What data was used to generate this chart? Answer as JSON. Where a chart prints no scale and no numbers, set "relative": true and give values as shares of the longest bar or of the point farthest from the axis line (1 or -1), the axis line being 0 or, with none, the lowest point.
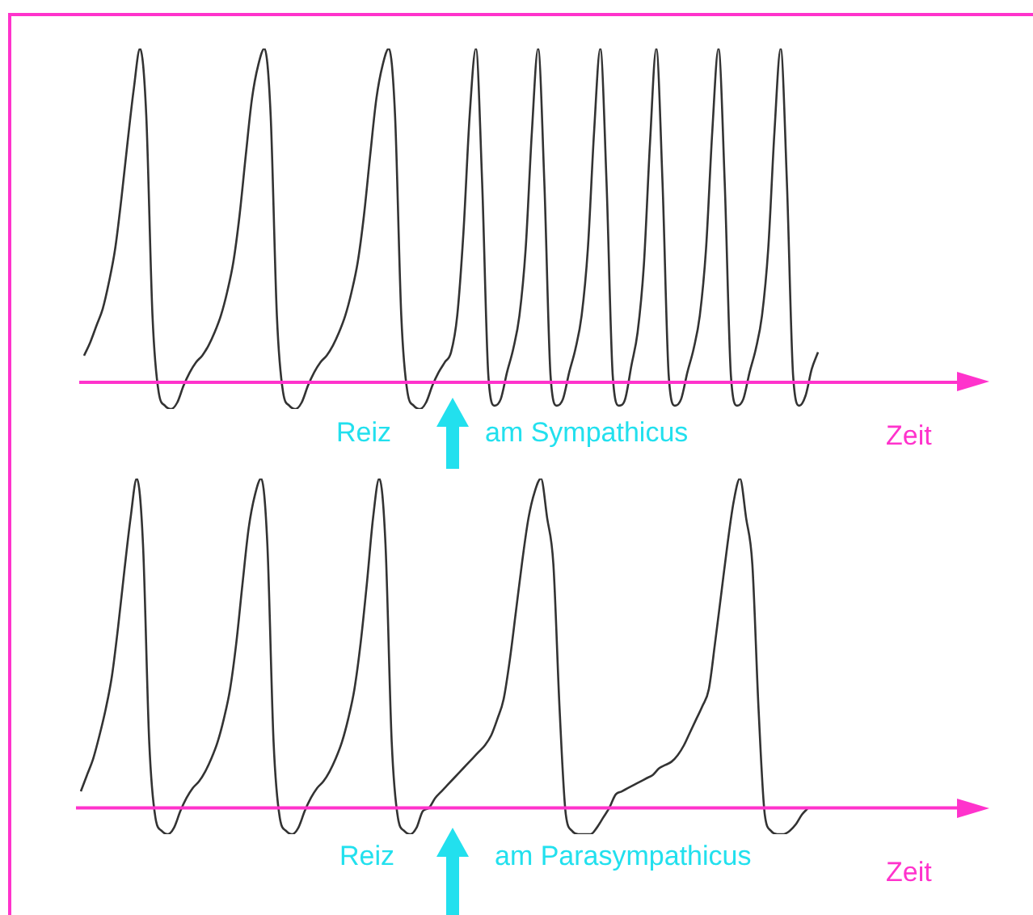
{
  "chart_data": [
    {
      "type": "line",
      "relative": true,
      "tick_labels": false,
      "legend": false,
      "marker": "none",
      "line_style": "solid",
      "xlabel": "Zeit",
      "annotations": [
        "Reiz",
        "am Sympathicus"
      ],
      "ref_lines": [
        {
          "axis": "y",
          "value": 0,
          "color": "#ff33cc"
        }
      ],
      "categories": [
        null,
        null,
        null,
        null,
        null,
        null,
        null,
        null,
        null,
        null,
        null,
        null,
        null,
        null,
        null,
        null,
        null,
        null,
        null,
        null,
        null,
        null,
        null,
        null,
        null,
        null,
        null,
        null,
        null,
        null,
        null,
        null,
        null,
        null,
        null,
        null,
        null,
        null,
        null,
        null,
        null,
        null,
        null,
        null,
        null,
        null,
        null,
        null,
        null,
        null,
        null,
        null,
        null,
        null,
        null,
        null,
        null,
        null,
        null,
        null,
        null,
        null,
        null,
        null,
        null,
        null,
        null,
        null,
        null,
        null,
        null,
        null,
        null,
        null,
        null,
        null,
        null,
        null,
        null,
        null,
        null,
        null,
        null,
        null,
        null,
        null,
        null,
        null,
        null,
        null,
        null,
        null,
        null,
        null,
        null,
        null,
        null,
        null,
        null,
        null,
        null,
        null,
        null,
        null,
        null,
        null,
        null,
        null,
        null,
        null,
        null,
        null,
        null,
        null,
        null,
        null,
        null,
        null,
        null
      ],
      "series": [
        {
          "color": "#333333",
          "values": [
            0.08,
            0.12,
            0.17,
            0.22,
            0.3,
            0.4,
            0.55,
            0.72,
            0.88,
            1,
            0.8,
            0.2,
            -0.03,
            -0.07,
            -0.08,
            -0.06,
            -0.01,
            0.03,
            0.06,
            0.08,
            0.11,
            0.15,
            0.2,
            0.27,
            0.36,
            0.5,
            0.68,
            0.85,
            0.95,
            1,
            0.8,
            0.2,
            -0.03,
            -0.07,
            -0.08,
            -0.06,
            -0.01,
            0.03,
            0.06,
            0.08,
            0.11,
            0.15,
            0.2,
            0.27,
            0.36,
            0.5,
            0.68,
            0.85,
            0.95,
            1,
            0.8,
            0.2,
            -0.03,
            -0.07,
            -0.08,
            -0.06,
            -0.01,
            0.03,
            0.06,
            0.09,
            0.2,
            0.45,
            0.8,
            1,
            0.6,
            0.02,
            -0.07,
            -0.05,
            0.03,
            0.1,
            0.2,
            0.4,
            0.75,
            1,
            0.6,
            0.02,
            -0.07,
            -0.05,
            0.03,
            0.1,
            0.2,
            0.4,
            0.75,
            1,
            0.6,
            0.02,
            -0.07,
            -0.05,
            0.05,
            0.15,
            0.35,
            0.72,
            1,
            0.6,
            0.02,
            -0.07,
            -0.05,
            0.03,
            0.1,
            0.2,
            0.4,
            0.75,
            1,
            0.6,
            0.02,
            -0.07,
            -0.05,
            0.03,
            0.1,
            0.2,
            0.4,
            0.75,
            1,
            0.6,
            0.02,
            -0.07,
            -0.04,
            0.04,
            0.09
          ]
        }
      ]
    },
    {
      "type": "line",
      "relative": true,
      "tick_labels": false,
      "legend": false,
      "marker": "none",
      "line_style": "solid",
      "xlabel": "Zeit",
      "annotations": [
        "Reiz",
        "am Parasympathicus"
      ],
      "ref_lines": [
        {
          "axis": "y",
          "value": 0,
          "color": "#ff33cc"
        }
      ],
      "categories": [
        null,
        null,
        null,
        null,
        null,
        null,
        null,
        null,
        null,
        null,
        null,
        null,
        null,
        null,
        null,
        null,
        null,
        null,
        null,
        null,
        null,
        null,
        null,
        null,
        null,
        null,
        null,
        null,
        null,
        null,
        null,
        null,
        null,
        null,
        null,
        null,
        null,
        null,
        null,
        null,
        null,
        null,
        null,
        null,
        null,
        null,
        null,
        null,
        null,
        null,
        null,
        null,
        null,
        null,
        null,
        null,
        null,
        null,
        null,
        null,
        null,
        null,
        null,
        null,
        null,
        null,
        null,
        null,
        null,
        null,
        null,
        null,
        null,
        null,
        null,
        null,
        null,
        null,
        null,
        null,
        null,
        null,
        null,
        null,
        null,
        null,
        null,
        null,
        null,
        null,
        null,
        null,
        null,
        null,
        null,
        null,
        null,
        null,
        null,
        null,
        null,
        null,
        null,
        null,
        null,
        null,
        null,
        null,
        null,
        null,
        null,
        null,
        null,
        null,
        null,
        null,
        null,
        null
      ],
      "series": [
        {
          "color": "#333333",
          "values": [
            0.05,
            0.1,
            0.15,
            0.22,
            0.3,
            0.4,
            0.55,
            0.72,
            0.88,
            1,
            0.8,
            0.2,
            -0.03,
            -0.07,
            -0.08,
            -0.06,
            -0.01,
            0.03,
            0.06,
            0.08,
            0.11,
            0.15,
            0.2,
            0.27,
            0.36,
            0.5,
            0.68,
            0.85,
            0.95,
            1,
            0.8,
            0.2,
            -0.03,
            -0.07,
            -0.08,
            -0.06,
            -0.01,
            0.03,
            0.06,
            0.08,
            0.11,
            0.15,
            0.2,
            0.27,
            0.36,
            0.5,
            0.68,
            0.88,
            1,
            0.8,
            0.2,
            -0.03,
            -0.07,
            -0.08,
            -0.06,
            -0.01,
            0,
            0.03,
            0.05,
            0.07,
            0.09,
            0.11,
            0.13,
            0.15,
            0.17,
            0.19,
            0.22,
            0.27,
            0.33,
            0.45,
            0.6,
            0.75,
            0.88,
            0.96,
            1,
            0.88,
            0.74,
            0.3,
            -0.02,
            -0.07,
            -0.08,
            -0.08,
            -0.08,
            -0.06,
            -0.03,
            0,
            0.04,
            0.05,
            0.06,
            0.07,
            0.08,
            0.09,
            0.1,
            0.12,
            0.13,
            0.14,
            0.16,
            0.19,
            0.23,
            0.27,
            0.31,
            0.36,
            0.5,
            0.65,
            0.8,
            0.93,
            1,
            0.88,
            0.74,
            0.3,
            -0.02,
            -0.07,
            -0.08,
            -0.08,
            -0.07,
            -0.05,
            -0.02,
            0
          ]
        }
      ]
    }
  ]
}
